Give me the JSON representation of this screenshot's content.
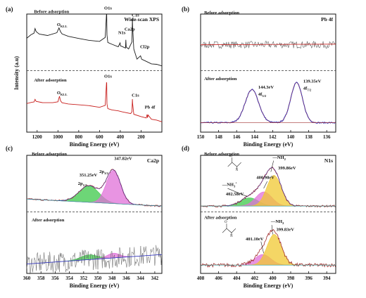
{
  "colors": {
    "before": "#1a1a1a",
    "after": "#c8201e",
    "fit": "#2a32c8",
    "envelope": "#a23030",
    "baseline": "#2a9a9a",
    "green": "#3cc84a",
    "pink": "#e070d8",
    "yellow": "#f0c832",
    "noise": "#606060",
    "divider": "#333333"
  },
  "chart_data": [
    {
      "panel": "(a)",
      "type": "line",
      "title": "Wide-scan XPS",
      "xlabel": "Binding Energy (eV)",
      "ylabel": "Intensity (a.u)",
      "xlim": [
        1300,
        0
      ],
      "xticks": [
        "1200",
        "1000",
        "800",
        "600",
        "400",
        "200"
      ],
      "series": [
        {
          "name": "Before adsorption",
          "x": [
            1300,
            1260,
            1230,
            1220,
            1210,
            1180,
            1100,
            1010,
            990,
            975,
            960,
            900,
            800,
            700,
            600,
            545,
            533,
            531,
            528,
            520,
            480,
            420,
            402,
            398,
            380,
            350,
            347,
            343,
            320,
            288,
            284,
            282,
            270,
            240,
            205,
            195,
            150,
            100,
            50,
            0
          ],
          "y": [
            0.8,
            0.82,
            0.84,
            0.88,
            0.85,
            0.83,
            0.82,
            0.84,
            0.88,
            0.85,
            0.83,
            0.81,
            0.79,
            0.78,
            0.77,
            0.8,
            1.0,
            1.0,
            0.82,
            0.76,
            0.74,
            0.72,
            0.76,
            0.73,
            0.72,
            0.71,
            0.78,
            0.72,
            0.7,
            0.76,
            0.96,
            0.9,
            0.7,
            0.62,
            0.65,
            0.62,
            0.6,
            0.58,
            0.57,
            0.56
          ]
        },
        {
          "name": "After adsorption",
          "x": [
            1300,
            1250,
            1230,
            1220,
            1210,
            1150,
            1050,
            1000,
            985,
            975,
            960,
            900,
            800,
            700,
            600,
            545,
            533,
            531,
            528,
            520,
            480,
            420,
            380,
            300,
            288,
            284,
            282,
            270,
            200,
            150,
            142,
            138,
            133,
            100,
            50,
            0
          ],
          "y": [
            0.24,
            0.25,
            0.26,
            0.28,
            0.26,
            0.25,
            0.25,
            0.26,
            0.3,
            0.27,
            0.25,
            0.24,
            0.23,
            0.22,
            0.21,
            0.23,
            0.42,
            0.42,
            0.24,
            0.2,
            0.19,
            0.18,
            0.17,
            0.16,
            0.17,
            0.28,
            0.24,
            0.15,
            0.13,
            0.12,
            0.15,
            0.12,
            0.14,
            0.11,
            0.1,
            0.09
          ]
        }
      ],
      "annotations": [
        {
          "text": "Before adsorption",
          "x": 1230,
          "y": 1.01
        },
        {
          "text": "After adsorption",
          "x": 1230,
          "y": 0.43
        },
        {
          "text": "O1s",
          "x": 555,
          "y": 1.04
        },
        {
          "text": "O",
          "sub": "KLL",
          "x": 1010,
          "y": 0.9
        },
        {
          "text": "N1s",
          "x": 420,
          "y": 0.83
        },
        {
          "text": "Ca2p",
          "x": 360,
          "y": 0.86
        },
        {
          "text": "C1s",
          "x": 290,
          "y": 0.98
        },
        {
          "text": "Cl2p",
          "x": 210,
          "y": 0.71
        },
        {
          "text": "O1s",
          "x": 555,
          "y": 0.46
        },
        {
          "text": "O",
          "sub": "KLL",
          "x": 1010,
          "y": 0.32
        },
        {
          "text": "C1s",
          "x": 290,
          "y": 0.3
        },
        {
          "text": "Pb 4f",
          "x": 165,
          "y": 0.2
        }
      ]
    },
    {
      "panel": "(b)",
      "type": "line",
      "title": "Pb 4f",
      "xlabel": "Binding Energy (eV)",
      "xlim": [
        150,
        135
      ],
      "xticks": [
        "150",
        "148",
        "146",
        "144",
        "142",
        "140",
        "138",
        "136"
      ],
      "series": [
        {
          "name": "Before adsorption"
        },
        {
          "name": "After adsorption",
          "peaks": [
            144.3,
            139.35
          ]
        }
      ],
      "annotations": [
        {
          "text": "Before adsorption",
          "x": 149.6,
          "y": 1.0
        },
        {
          "text": "After adsorption",
          "x": 149.6,
          "y": 0.44
        },
        {
          "text": "144.3eV",
          "x": 143.6,
          "y": 0.37
        },
        {
          "text": "4f",
          "sub": "5/2",
          "x": 143.6,
          "y": 0.31
        },
        {
          "text": "139.35eV",
          "x": 138.6,
          "y": 0.42
        },
        {
          "text": "4f",
          "sub": "7/2",
          "x": 138.6,
          "y": 0.36
        }
      ]
    },
    {
      "panel": "(c)",
      "type": "line",
      "title": "Ca2p",
      "xlabel": "Binding Energy (eV)",
      "xlim": [
        360,
        341
      ],
      "xticks": [
        "360",
        "358",
        "356",
        "354",
        "352",
        "350",
        "348",
        "346",
        "344",
        "342"
      ],
      "series": [
        {
          "name": "Before adsorption",
          "peaks": [
            351.25,
            347.82
          ]
        },
        {
          "name": "After adsorption",
          "peaks": [
            351.25,
            347.82
          ]
        }
      ],
      "annotations": [
        {
          "text": "Before adsorption",
          "x": 359.3,
          "y": 1.0
        },
        {
          "text": "After adsorption",
          "x": 359.3,
          "y": 0.44
        },
        {
          "text": "351.25eV",
          "x": 352.6,
          "y": 0.82
        },
        {
          "text": "2p",
          "sub": "1/2",
          "x": 352.8,
          "y": 0.75
        },
        {
          "text": "347.82eV",
          "x": 347.7,
          "y": 0.96
        },
        {
          "text": "2p",
          "sub": "3/2",
          "x": 349.8,
          "y": 0.85
        }
      ]
    },
    {
      "panel": "(d)",
      "type": "line",
      "title": "N1s",
      "xlabel": "Binding Energy (eV)",
      "xlim": [
        408,
        393
      ],
      "xticks": [
        "408",
        "406",
        "404",
        "402",
        "400",
        "398",
        "396",
        "394"
      ],
      "series": [
        {
          "name": "Before adsorption",
          "peaks": [
            402.58,
            400.98,
            399.86
          ]
        },
        {
          "name": "After adsorption",
          "peaks": [
            401.1,
            399.83
          ]
        }
      ],
      "annotations": [
        {
          "text": "Before adsorption",
          "x": 407.6,
          "y": 1.0
        },
        {
          "text": "After adsorption",
          "x": 407.6,
          "y": 0.46
        },
        {
          "text": "400.98eV",
          "x": 401.8,
          "y": 0.8
        },
        {
          "text": "—NH",
          "sub": "2",
          "x": 400.0,
          "y": 0.97
        },
        {
          "text": "399.86eV",
          "x": 399.4,
          "y": 0.88
        },
        {
          "text": "—NH",
          "sub": "3",
          "sup": "+",
          "x": 405.6,
          "y": 0.74
        },
        {
          "text": "402.58eV",
          "x": 405.2,
          "y": 0.66
        },
        {
          "text": "—NH",
          "sub": "2",
          "x": 400.2,
          "y": 0.43
        },
        {
          "text": "399.83eV",
          "x": 399.6,
          "y": 0.36
        },
        {
          "text": "401.10eV",
          "x": 403.0,
          "y": 0.28
        }
      ]
    }
  ]
}
